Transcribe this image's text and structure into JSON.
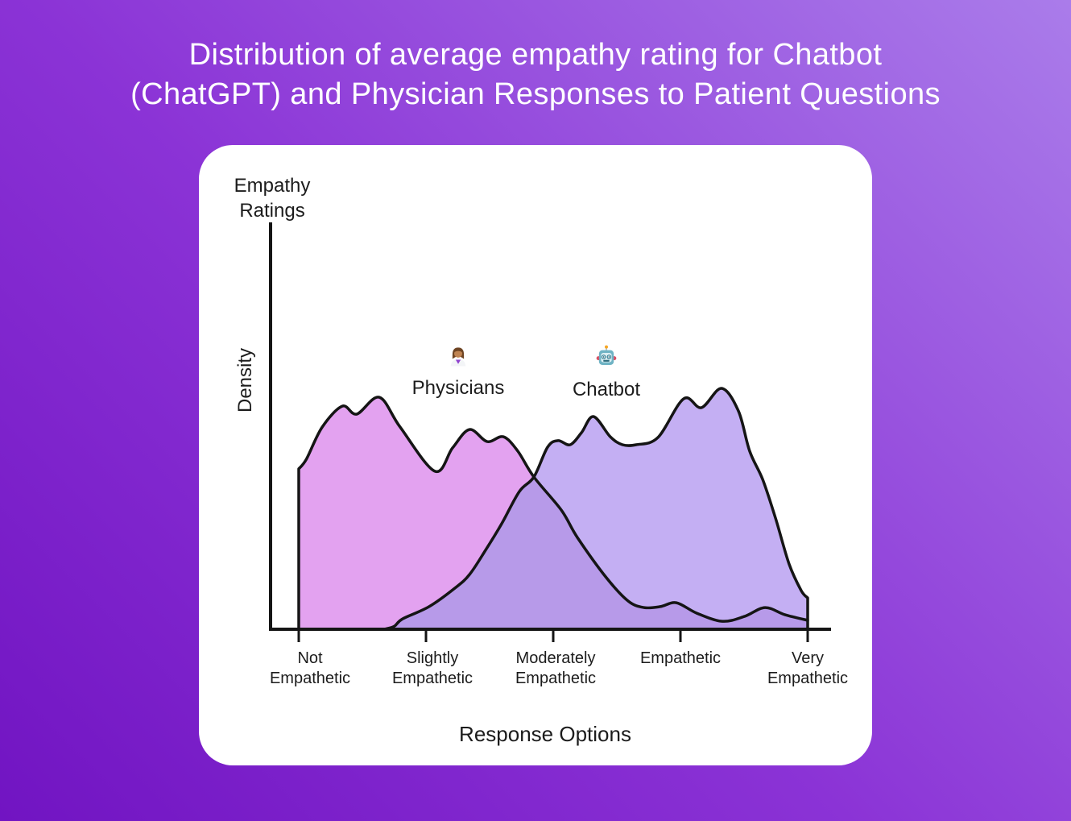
{
  "page": {
    "title_line1": "Distribution of average empathy rating for Chatbot",
    "title_line2": "(ChatGPT) and Physician Responses to Patient Questions",
    "title_color": "#ffffff",
    "background_gradient": [
      "#7114c2",
      "#aa7cea"
    ]
  },
  "chart_data": {
    "type": "area",
    "title": "Distribution of average empathy rating for Chatbot (ChatGPT) and Physician Responses to Patient Questions",
    "xlabel": "Response Options",
    "ylabel": "Density",
    "y_axis_title_line1": "Empathy",
    "y_axis_title_line2": "Ratings",
    "categories": [
      "Not Empathetic",
      "Slightly Empathetic",
      "Moderately Empathetic",
      "Empathetic",
      "Very Empathetic"
    ],
    "x_tick_lines": [
      [
        "Not",
        "Empathetic"
      ],
      [
        "Slightly",
        "Empathetic"
      ],
      [
        "Moderately",
        "Empathetic"
      ],
      [
        "Empathetic"
      ],
      [
        "Very",
        "Empathetic"
      ]
    ],
    "x_range": [
      0,
      4
    ],
    "y_range": [
      0,
      1
    ],
    "grid": false,
    "legend_position": "top-inside",
    "stroke_color": "#151515",
    "overlap_color": "#b79ae9",
    "crossing_x": 1.848,
    "legend": [
      {
        "label": "Physicians",
        "icon": "woman-health-worker-emoji"
      },
      {
        "label": "Chatbot",
        "icon": "robot-emoji"
      }
    ],
    "series": [
      {
        "name": "Physicians",
        "color": "#e3a2f0",
        "start": "left-edge",
        "points": [
          [
            0,
            0.666
          ],
          [
            0.06,
            0.706
          ],
          [
            0.184,
            0.839
          ],
          [
            0.342,
            0.926
          ],
          [
            0.456,
            0.893
          ],
          [
            0.633,
            0.963
          ],
          [
            0.797,
            0.839
          ],
          [
            1.07,
            0.656
          ],
          [
            1.209,
            0.753
          ],
          [
            1.342,
            0.829
          ],
          [
            1.481,
            0.779
          ],
          [
            1.608,
            0.799
          ],
          [
            1.722,
            0.739
          ],
          [
            1.848,
            0.632
          ],
          [
            2.063,
            0.495
          ],
          [
            2.19,
            0.381
          ],
          [
            2.418,
            0.214
          ],
          [
            2.589,
            0.117
          ],
          [
            2.715,
            0.09
          ],
          [
            2.842,
            0.094
          ],
          [
            2.968,
            0.11
          ],
          [
            3.127,
            0.067
          ],
          [
            3.329,
            0.033
          ],
          [
            3.506,
            0.054
          ],
          [
            3.665,
            0.09
          ],
          [
            3.823,
            0.06
          ],
          [
            4,
            0.037
          ]
        ]
      },
      {
        "name": "Chatbot",
        "color": "#c4aff3",
        "end": "right-edge",
        "points": [
          [
            0.671,
            0
          ],
          [
            0.75,
            0.012
          ],
          [
            0.816,
            0.043
          ],
          [
            1.025,
            0.094
          ],
          [
            1.228,
            0.171
          ],
          [
            1.342,
            0.227
          ],
          [
            1.468,
            0.328
          ],
          [
            1.595,
            0.438
          ],
          [
            1.734,
            0.572
          ],
          [
            1.848,
            0.632
          ],
          [
            1.956,
            0.756
          ],
          [
            2.038,
            0.783
          ],
          [
            2.133,
            0.766
          ],
          [
            2.222,
            0.816
          ],
          [
            2.316,
            0.883
          ],
          [
            2.449,
            0.799
          ],
          [
            2.544,
            0.766
          ],
          [
            2.652,
            0.766
          ],
          [
            2.823,
            0.796
          ],
          [
            3.025,
            0.957
          ],
          [
            3.165,
            0.92
          ],
          [
            3.323,
            1
          ],
          [
            3.456,
            0.906
          ],
          [
            3.544,
            0.739
          ],
          [
            3.646,
            0.622
          ],
          [
            3.747,
            0.462
          ],
          [
            3.854,
            0.271
          ],
          [
            3.949,
            0.161
          ],
          [
            4,
            0.13
          ]
        ]
      }
    ]
  }
}
